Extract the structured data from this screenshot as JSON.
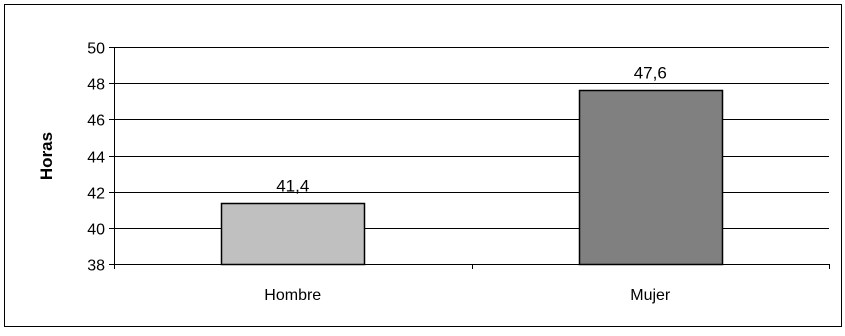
{
  "chart_data": {
    "type": "bar",
    "categories": [
      "Hombre",
      "Mujer"
    ],
    "values": [
      41.4,
      47.6
    ],
    "value_labels": [
      "41,4",
      "47,6"
    ],
    "ylabel": "Horas",
    "xlabel": "",
    "title": "",
    "ylim": [
      38,
      50
    ],
    "yticks": [
      38,
      40,
      42,
      44,
      46,
      48,
      50
    ],
    "grid": true,
    "legend": "none",
    "colors": [
      "#c0c0c0",
      "#808080"
    ]
  }
}
